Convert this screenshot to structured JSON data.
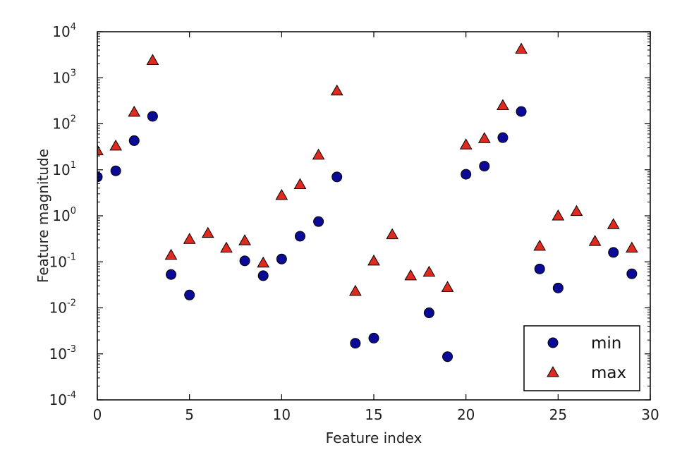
{
  "chart_data": {
    "type": "scatter",
    "title": "",
    "xlabel": "Feature index",
    "ylabel": "Feature magnitude",
    "xlim": [
      0,
      30
    ],
    "ylim_log10": [
      -4,
      4
    ],
    "yscale": "log",
    "grid": false,
    "legend_position": "lower-right",
    "x_ticks": [
      0,
      5,
      10,
      15,
      20,
      25,
      30
    ],
    "y_tick_exponents": [
      -4,
      -3,
      -2,
      -1,
      0,
      1,
      2,
      3,
      4
    ],
    "y_tick_base": "10",
    "x": [
      0,
      1,
      2,
      3,
      4,
      5,
      6,
      7,
      8,
      9,
      10,
      11,
      12,
      13,
      14,
      15,
      16,
      17,
      18,
      19,
      20,
      21,
      22,
      23,
      24,
      25,
      26,
      27,
      28,
      29
    ],
    "series": [
      {
        "name": "min",
        "marker": "circle",
        "color": "#0a0a96",
        "values": [
          7,
          9.5,
          43,
          145,
          0.053,
          0.019,
          null,
          null,
          0.105,
          0.05,
          0.115,
          0.36,
          0.75,
          7,
          0.0017,
          0.0022,
          null,
          null,
          0.0078,
          0.00087,
          8,
          12,
          50,
          185,
          0.07,
          0.027,
          null,
          null,
          0.16,
          0.055
        ]
      },
      {
        "name": "max",
        "marker": "triangle",
        "color": "#e02a1e",
        "values": [
          26,
          33,
          180,
          2400,
          0.14,
          0.31,
          0.42,
          0.2,
          0.29,
          0.095,
          2.8,
          4.8,
          21,
          520,
          0.023,
          0.105,
          0.39,
          0.05,
          0.06,
          0.028,
          35,
          48,
          250,
          4200,
          0.22,
          1.0,
          1.25,
          0.28,
          0.65,
          0.2
        ]
      }
    ]
  }
}
